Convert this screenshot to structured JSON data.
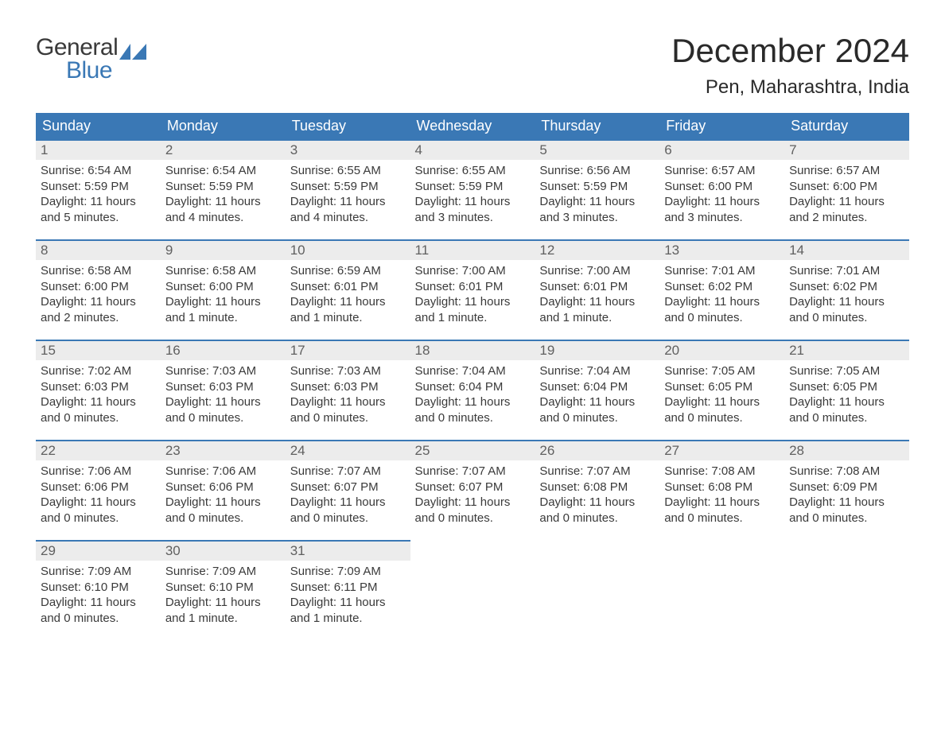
{
  "logo": {
    "line1": "General",
    "line2": "Blue"
  },
  "title": {
    "month": "December 2024",
    "location": "Pen, Maharashtra, India"
  },
  "colors": {
    "header_bg": "#3a78b5",
    "header_text": "#ffffff",
    "daynum_bg": "#ececec",
    "daynum_border": "#3a78b5",
    "body_text": "#3a3a3a",
    "logo_gray": "#3a3a3a",
    "logo_blue": "#3a78b5"
  },
  "day_headers": [
    "Sunday",
    "Monday",
    "Tuesday",
    "Wednesday",
    "Thursday",
    "Friday",
    "Saturday"
  ],
  "days": [
    {
      "n": "1",
      "sr": "6:54 AM",
      "ss": "5:59 PM",
      "dl": "11 hours and 5 minutes."
    },
    {
      "n": "2",
      "sr": "6:54 AM",
      "ss": "5:59 PM",
      "dl": "11 hours and 4 minutes."
    },
    {
      "n": "3",
      "sr": "6:55 AM",
      "ss": "5:59 PM",
      "dl": "11 hours and 4 minutes."
    },
    {
      "n": "4",
      "sr": "6:55 AM",
      "ss": "5:59 PM",
      "dl": "11 hours and 3 minutes."
    },
    {
      "n": "5",
      "sr": "6:56 AM",
      "ss": "5:59 PM",
      "dl": "11 hours and 3 minutes."
    },
    {
      "n": "6",
      "sr": "6:57 AM",
      "ss": "6:00 PM",
      "dl": "11 hours and 3 minutes."
    },
    {
      "n": "7",
      "sr": "6:57 AM",
      "ss": "6:00 PM",
      "dl": "11 hours and 2 minutes."
    },
    {
      "n": "8",
      "sr": "6:58 AM",
      "ss": "6:00 PM",
      "dl": "11 hours and 2 minutes."
    },
    {
      "n": "9",
      "sr": "6:58 AM",
      "ss": "6:00 PM",
      "dl": "11 hours and 1 minute."
    },
    {
      "n": "10",
      "sr": "6:59 AM",
      "ss": "6:01 PM",
      "dl": "11 hours and 1 minute."
    },
    {
      "n": "11",
      "sr": "7:00 AM",
      "ss": "6:01 PM",
      "dl": "11 hours and 1 minute."
    },
    {
      "n": "12",
      "sr": "7:00 AM",
      "ss": "6:01 PM",
      "dl": "11 hours and 1 minute."
    },
    {
      "n": "13",
      "sr": "7:01 AM",
      "ss": "6:02 PM",
      "dl": "11 hours and 0 minutes."
    },
    {
      "n": "14",
      "sr": "7:01 AM",
      "ss": "6:02 PM",
      "dl": "11 hours and 0 minutes."
    },
    {
      "n": "15",
      "sr": "7:02 AM",
      "ss": "6:03 PM",
      "dl": "11 hours and 0 minutes."
    },
    {
      "n": "16",
      "sr": "7:03 AM",
      "ss": "6:03 PM",
      "dl": "11 hours and 0 minutes."
    },
    {
      "n": "17",
      "sr": "7:03 AM",
      "ss": "6:03 PM",
      "dl": "11 hours and 0 minutes."
    },
    {
      "n": "18",
      "sr": "7:04 AM",
      "ss": "6:04 PM",
      "dl": "11 hours and 0 minutes."
    },
    {
      "n": "19",
      "sr": "7:04 AM",
      "ss": "6:04 PM",
      "dl": "11 hours and 0 minutes."
    },
    {
      "n": "20",
      "sr": "7:05 AM",
      "ss": "6:05 PM",
      "dl": "11 hours and 0 minutes."
    },
    {
      "n": "21",
      "sr": "7:05 AM",
      "ss": "6:05 PM",
      "dl": "11 hours and 0 minutes."
    },
    {
      "n": "22",
      "sr": "7:06 AM",
      "ss": "6:06 PM",
      "dl": "11 hours and 0 minutes."
    },
    {
      "n": "23",
      "sr": "7:06 AM",
      "ss": "6:06 PM",
      "dl": "11 hours and 0 minutes."
    },
    {
      "n": "24",
      "sr": "7:07 AM",
      "ss": "6:07 PM",
      "dl": "11 hours and 0 minutes."
    },
    {
      "n": "25",
      "sr": "7:07 AM",
      "ss": "6:07 PM",
      "dl": "11 hours and 0 minutes."
    },
    {
      "n": "26",
      "sr": "7:07 AM",
      "ss": "6:08 PM",
      "dl": "11 hours and 0 minutes."
    },
    {
      "n": "27",
      "sr": "7:08 AM",
      "ss": "6:08 PM",
      "dl": "11 hours and 0 minutes."
    },
    {
      "n": "28",
      "sr": "7:08 AM",
      "ss": "6:09 PM",
      "dl": "11 hours and 0 minutes."
    },
    {
      "n": "29",
      "sr": "7:09 AM",
      "ss": "6:10 PM",
      "dl": "11 hours and 0 minutes."
    },
    {
      "n": "30",
      "sr": "7:09 AM",
      "ss": "6:10 PM",
      "dl": "11 hours and 1 minute."
    },
    {
      "n": "31",
      "sr": "7:09 AM",
      "ss": "6:11 PM",
      "dl": "11 hours and 1 minute."
    }
  ],
  "labels": {
    "sunrise": "Sunrise: ",
    "sunset": "Sunset: ",
    "daylight": "Daylight: "
  }
}
